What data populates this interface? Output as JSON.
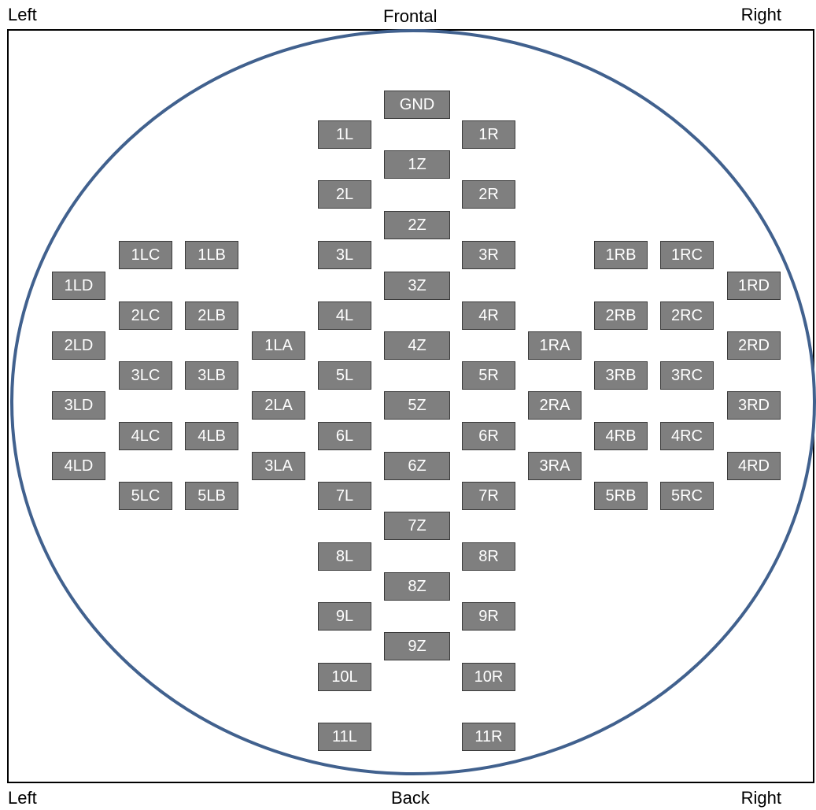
{
  "labels": {
    "top_left": "Left",
    "top_center": "Frontal",
    "top_right": "Right",
    "bottom_left": "Left",
    "bottom_center": "Back",
    "bottom_right": "Right"
  },
  "colors": {
    "head_outline": "#41618e",
    "electrode_fill": "#7f7f7f",
    "electrode_text": "#ffffff"
  },
  "electrodes": {
    "gnd": "GND",
    "l1": "1L",
    "r1": "1R",
    "z1": "1Z",
    "l2": "2L",
    "r2": "2R",
    "z2": "2Z",
    "l3": "3L",
    "r3": "3R",
    "z3": "3Z",
    "l4": "4L",
    "r4": "4R",
    "z4": "4Z",
    "l5": "5L",
    "r5": "5R",
    "z5": "5Z",
    "l6": "6L",
    "r6": "6R",
    "z6": "6Z",
    "l7": "7L",
    "r7": "7R",
    "z7": "7Z",
    "l8": "8L",
    "r8": "8R",
    "z8": "8Z",
    "l9": "9L",
    "r9": "9R",
    "z9": "9Z",
    "l10": "10L",
    "r10": "10R",
    "l11": "11L",
    "r11": "11R",
    "lc1": "1LC",
    "lc2": "2LC",
    "lc3": "3LC",
    "lc4": "4LC",
    "lc5": "5LC",
    "lb1": "1LB",
    "lb2": "2LB",
    "lb3": "3LB",
    "lb4": "4LB",
    "lb5": "5LB",
    "ld1": "1LD",
    "ld2": "2LD",
    "ld3": "3LD",
    "ld4": "4LD",
    "la1": "1LA",
    "la2": "2LA",
    "la3": "3LA",
    "rb1": "1RB",
    "rb2": "2RB",
    "rb3": "3RB",
    "rb4": "4RB",
    "rb5": "5RB",
    "rc1": "1RC",
    "rc2": "2RC",
    "rc3": "3RC",
    "rc4": "4RC",
    "rc5": "5RC",
    "rd1": "1RD",
    "rd2": "2RD",
    "rd3": "3RD",
    "rd4": "4RD",
    "ra1": "1RA",
    "ra2": "2RA",
    "ra3": "3RA"
  }
}
